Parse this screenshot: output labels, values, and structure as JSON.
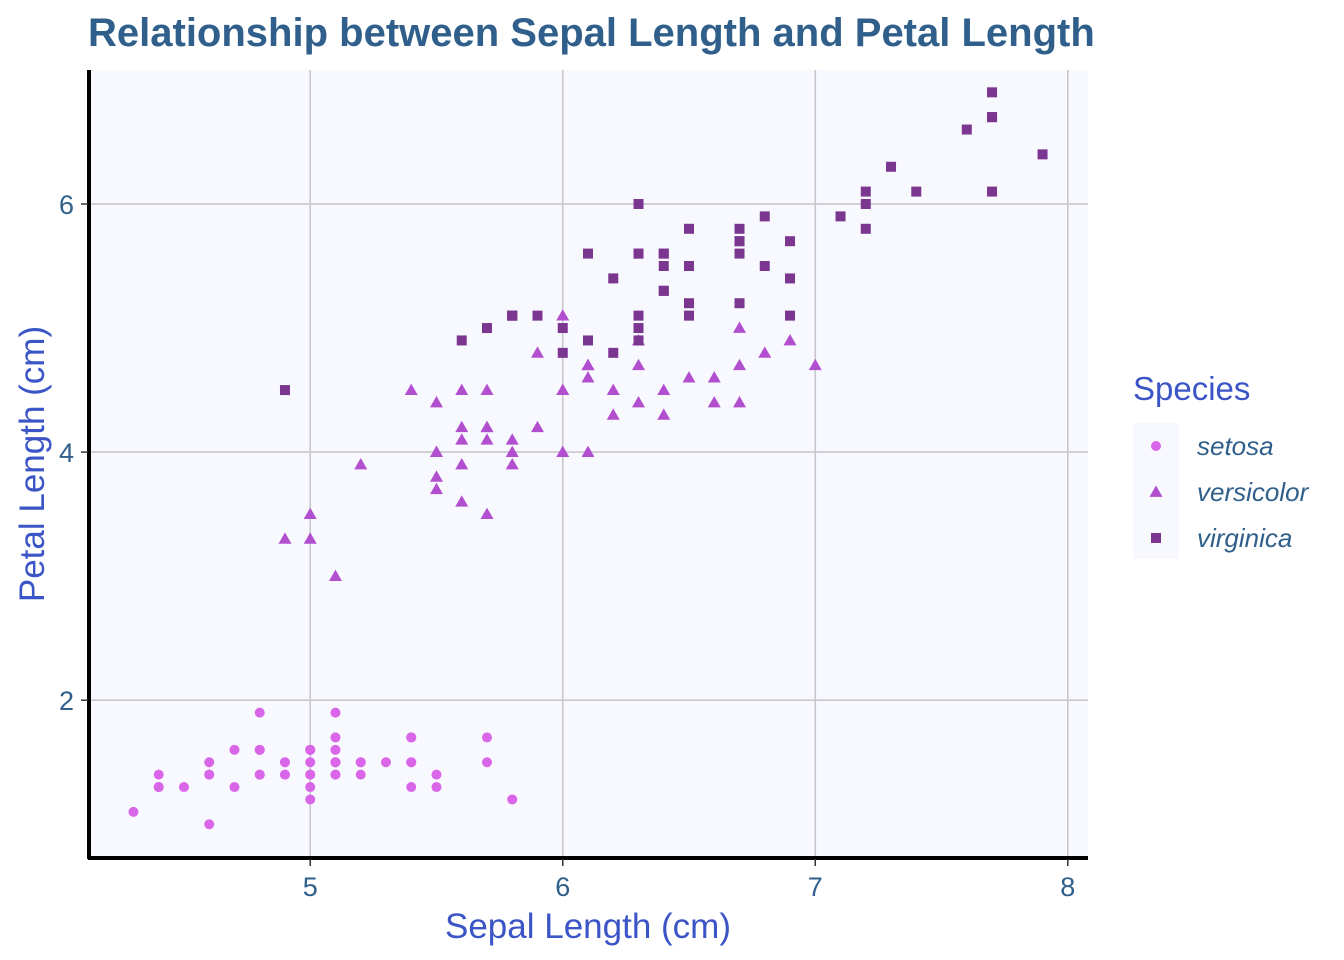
{
  "chart_data": {
    "type": "scatter",
    "title": "Relationship between Sepal Length and Petal Length",
    "xlabel": "Sepal Length (cm)",
    "ylabel": "Petal Length (cm)",
    "xlim": [
      4.12,
      8.08
    ],
    "ylim": [
      0.72,
      7.08
    ],
    "xticks": [
      5,
      6,
      7,
      8
    ],
    "yticks": [
      2,
      4,
      6
    ],
    "grid": true,
    "legend": {
      "title": "Species",
      "position": "right"
    },
    "colors": {
      "title": "#2f5f8a",
      "axis_title": "#3b55c7",
      "tick": "#2f5f8a",
      "panel": "#f8f8ff",
      "grid": "#c8c8cc"
    },
    "series": [
      {
        "name": "setosa",
        "marker": "circle",
        "color": "#d966e8",
        "points": [
          [
            5.1,
            1.4
          ],
          [
            4.9,
            1.4
          ],
          [
            4.7,
            1.3
          ],
          [
            4.6,
            1.5
          ],
          [
            5.0,
            1.4
          ],
          [
            5.4,
            1.7
          ],
          [
            4.6,
            1.4
          ],
          [
            5.0,
            1.5
          ],
          [
            4.4,
            1.4
          ],
          [
            4.9,
            1.5
          ],
          [
            5.4,
            1.5
          ],
          [
            4.8,
            1.6
          ],
          [
            4.8,
            1.4
          ],
          [
            4.3,
            1.1
          ],
          [
            5.8,
            1.2
          ],
          [
            5.7,
            1.5
          ],
          [
            5.4,
            1.3
          ],
          [
            5.1,
            1.4
          ],
          [
            5.7,
            1.7
          ],
          [
            5.1,
            1.5
          ],
          [
            5.4,
            1.7
          ],
          [
            5.1,
            1.5
          ],
          [
            4.6,
            1.0
          ],
          [
            5.1,
            1.7
          ],
          [
            4.8,
            1.9
          ],
          [
            5.0,
            1.6
          ],
          [
            5.0,
            1.6
          ],
          [
            5.2,
            1.5
          ],
          [
            5.2,
            1.4
          ],
          [
            4.7,
            1.6
          ],
          [
            4.8,
            1.6
          ],
          [
            5.4,
            1.5
          ],
          [
            5.2,
            1.5
          ],
          [
            5.5,
            1.4
          ],
          [
            4.9,
            1.5
          ],
          [
            5.0,
            1.2
          ],
          [
            5.5,
            1.3
          ],
          [
            4.9,
            1.4
          ],
          [
            4.4,
            1.3
          ],
          [
            5.1,
            1.5
          ],
          [
            5.0,
            1.3
          ],
          [
            4.5,
            1.3
          ],
          [
            4.4,
            1.3
          ],
          [
            5.0,
            1.6
          ],
          [
            5.1,
            1.9
          ],
          [
            4.8,
            1.4
          ],
          [
            5.1,
            1.6
          ],
          [
            4.6,
            1.4
          ],
          [
            5.3,
            1.5
          ],
          [
            5.0,
            1.4
          ]
        ]
      },
      {
        "name": "versicolor",
        "marker": "triangle",
        "color": "#b24fcf",
        "points": [
          [
            7.0,
            4.7
          ],
          [
            6.4,
            4.5
          ],
          [
            6.9,
            4.9
          ],
          [
            5.5,
            4.0
          ],
          [
            6.5,
            4.6
          ],
          [
            5.7,
            4.5
          ],
          [
            6.3,
            4.7
          ],
          [
            4.9,
            3.3
          ],
          [
            6.6,
            4.6
          ],
          [
            5.2,
            3.9
          ],
          [
            5.0,
            3.5
          ],
          [
            5.9,
            4.2
          ],
          [
            6.0,
            4.0
          ],
          [
            6.1,
            4.7
          ],
          [
            5.6,
            3.6
          ],
          [
            6.7,
            4.4
          ],
          [
            5.6,
            4.5
          ],
          [
            5.8,
            4.1
          ],
          [
            6.2,
            4.5
          ],
          [
            5.6,
            3.9
          ],
          [
            5.9,
            4.8
          ],
          [
            6.1,
            4.0
          ],
          [
            6.3,
            4.9
          ],
          [
            6.1,
            4.7
          ],
          [
            6.4,
            4.3
          ],
          [
            6.6,
            4.4
          ],
          [
            6.8,
            4.8
          ],
          [
            6.7,
            5.0
          ],
          [
            6.0,
            4.5
          ],
          [
            5.7,
            3.5
          ],
          [
            5.5,
            3.8
          ],
          [
            5.5,
            3.7
          ],
          [
            5.8,
            3.9
          ],
          [
            6.0,
            5.1
          ],
          [
            5.4,
            4.5
          ],
          [
            6.0,
            4.5
          ],
          [
            6.7,
            4.7
          ],
          [
            6.3,
            4.4
          ],
          [
            5.6,
            4.1
          ],
          [
            5.5,
            4.0
          ],
          [
            5.5,
            4.4
          ],
          [
            6.1,
            4.6
          ],
          [
            5.8,
            4.0
          ],
          [
            5.0,
            3.3
          ],
          [
            5.6,
            4.2
          ],
          [
            5.7,
            4.2
          ],
          [
            5.7,
            4.2
          ],
          [
            6.2,
            4.3
          ],
          [
            5.1,
            3.0
          ],
          [
            5.7,
            4.1
          ]
        ]
      },
      {
        "name": "virginica",
        "marker": "square",
        "color": "#7b3790",
        "points": [
          [
            6.3,
            6.0
          ],
          [
            5.8,
            5.1
          ],
          [
            7.1,
            5.9
          ],
          [
            6.3,
            5.6
          ],
          [
            6.5,
            5.8
          ],
          [
            7.6,
            6.6
          ],
          [
            4.9,
            4.5
          ],
          [
            7.3,
            6.3
          ],
          [
            6.7,
            5.8
          ],
          [
            7.2,
            6.1
          ],
          [
            6.5,
            5.1
          ],
          [
            6.4,
            5.3
          ],
          [
            6.8,
            5.5
          ],
          [
            5.7,
            5.0
          ],
          [
            5.8,
            5.1
          ],
          [
            6.4,
            5.3
          ],
          [
            6.5,
            5.5
          ],
          [
            7.7,
            6.7
          ],
          [
            7.7,
            6.9
          ],
          [
            6.0,
            5.0
          ],
          [
            6.9,
            5.7
          ],
          [
            5.6,
            4.9
          ],
          [
            7.7,
            6.7
          ],
          [
            6.3,
            4.9
          ],
          [
            6.7,
            5.7
          ],
          [
            7.2,
            6.0
          ],
          [
            6.2,
            4.8
          ],
          [
            6.1,
            4.9
          ],
          [
            6.4,
            5.6
          ],
          [
            7.2,
            5.8
          ],
          [
            7.4,
            6.1
          ],
          [
            7.9,
            6.4
          ],
          [
            6.4,
            5.6
          ],
          [
            6.3,
            5.1
          ],
          [
            6.1,
            5.6
          ],
          [
            7.7,
            6.1
          ],
          [
            6.3,
            5.6
          ],
          [
            6.4,
            5.5
          ],
          [
            6.0,
            4.8
          ],
          [
            6.9,
            5.4
          ],
          [
            6.7,
            5.6
          ],
          [
            6.9,
            5.1
          ],
          [
            5.8,
            5.1
          ],
          [
            6.8,
            5.9
          ],
          [
            6.7,
            5.7
          ],
          [
            6.7,
            5.2
          ],
          [
            6.3,
            5.0
          ],
          [
            6.5,
            5.2
          ],
          [
            6.2,
            5.4
          ],
          [
            5.9,
            5.1
          ]
        ]
      }
    ]
  }
}
